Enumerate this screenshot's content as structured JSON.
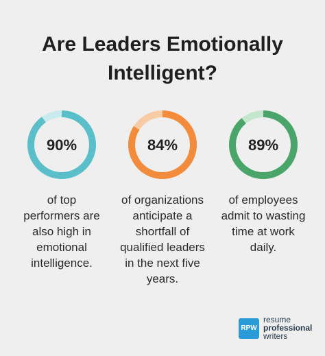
{
  "title_lines": [
    "Are Leaders Emotionally",
    "Intelligent?"
  ],
  "chart_data": [
    {
      "type": "pie",
      "value": 90,
      "label": "90%",
      "description_lines": [
        "of top",
        "performers are",
        "also high in",
        "emotional",
        "intelligence."
      ],
      "color": "#5bbfca",
      "track_color": "#c9ebee"
    },
    {
      "type": "pie",
      "value": 84,
      "label": "84%",
      "description_lines": [
        "of organizations",
        "anticipate a",
        "shortfall of",
        "qualified leaders",
        "in the next five",
        "years."
      ],
      "color": "#f28c3c",
      "track_color": "#f8cba4"
    },
    {
      "type": "pie",
      "value": 89,
      "label": "89%",
      "description_lines": [
        "of employees",
        "admit to wasting",
        "time at work",
        "daily."
      ],
      "color": "#4aa56a",
      "track_color": "#c4e6cd"
    }
  ],
  "logo": {
    "badge": "RPW",
    "line1": "resume",
    "line2": "professional",
    "line3": "writers"
  }
}
